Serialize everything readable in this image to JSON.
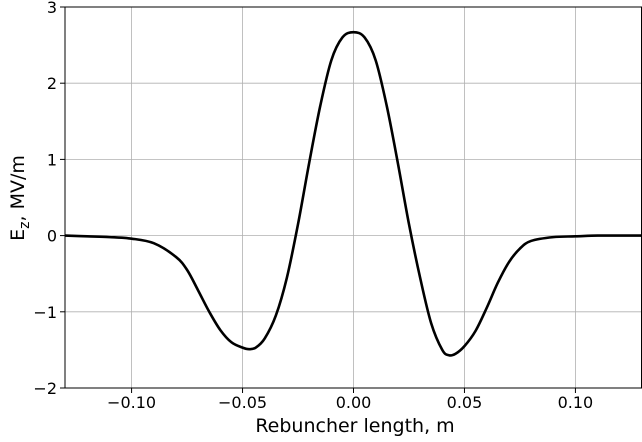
{
  "chart_data": {
    "type": "line",
    "xlabel": "Rebuncher length, m",
    "ylabel_main": "E",
    "ylabel_sub": "z",
    "ylabel_rest": ", MV/m",
    "xlim": [
      -0.13,
      0.13
    ],
    "ylim": [
      -2,
      3
    ],
    "grid": true,
    "xticks": [
      -0.1,
      -0.05,
      0.0,
      0.05,
      0.1
    ],
    "xtick_labels": [
      "−0.10",
      "−0.05",
      "0.00",
      "0.05",
      "0.10"
    ],
    "yticks": [
      -2,
      -1,
      0,
      1,
      2,
      3
    ],
    "ytick_labels": [
      "−2",
      "−1",
      "0",
      "1",
      "2",
      "3"
    ],
    "line_color": "#000000",
    "series": [
      {
        "x": [
          -0.13,
          -0.12,
          -0.11,
          -0.1,
          -0.09,
          -0.08,
          -0.075,
          -0.07,
          -0.065,
          -0.06,
          -0.055,
          -0.05,
          -0.047,
          -0.044,
          -0.04,
          -0.035,
          -0.03,
          -0.025,
          -0.02,
          -0.015,
          -0.01,
          -0.005,
          0.0,
          0.005,
          0.01,
          0.015,
          0.02,
          0.025,
          0.03,
          0.035,
          0.04,
          0.043,
          0.046,
          0.05,
          0.055,
          0.06,
          0.065,
          0.07,
          0.075,
          0.08,
          0.09,
          0.1,
          0.11,
          0.12,
          0.13
        ],
        "y": [
          0.0,
          -0.01,
          -0.02,
          -0.04,
          -0.1,
          -0.28,
          -0.45,
          -0.72,
          -1.0,
          -1.24,
          -1.4,
          -1.47,
          -1.49,
          -1.47,
          -1.35,
          -1.05,
          -0.55,
          0.15,
          0.95,
          1.7,
          2.3,
          2.6,
          2.67,
          2.6,
          2.3,
          1.7,
          0.95,
          0.15,
          -0.55,
          -1.15,
          -1.5,
          -1.57,
          -1.55,
          -1.45,
          -1.25,
          -0.95,
          -0.62,
          -0.35,
          -0.17,
          -0.07,
          -0.02,
          -0.01,
          0.0,
          0.0,
          0.0
        ]
      }
    ]
  }
}
